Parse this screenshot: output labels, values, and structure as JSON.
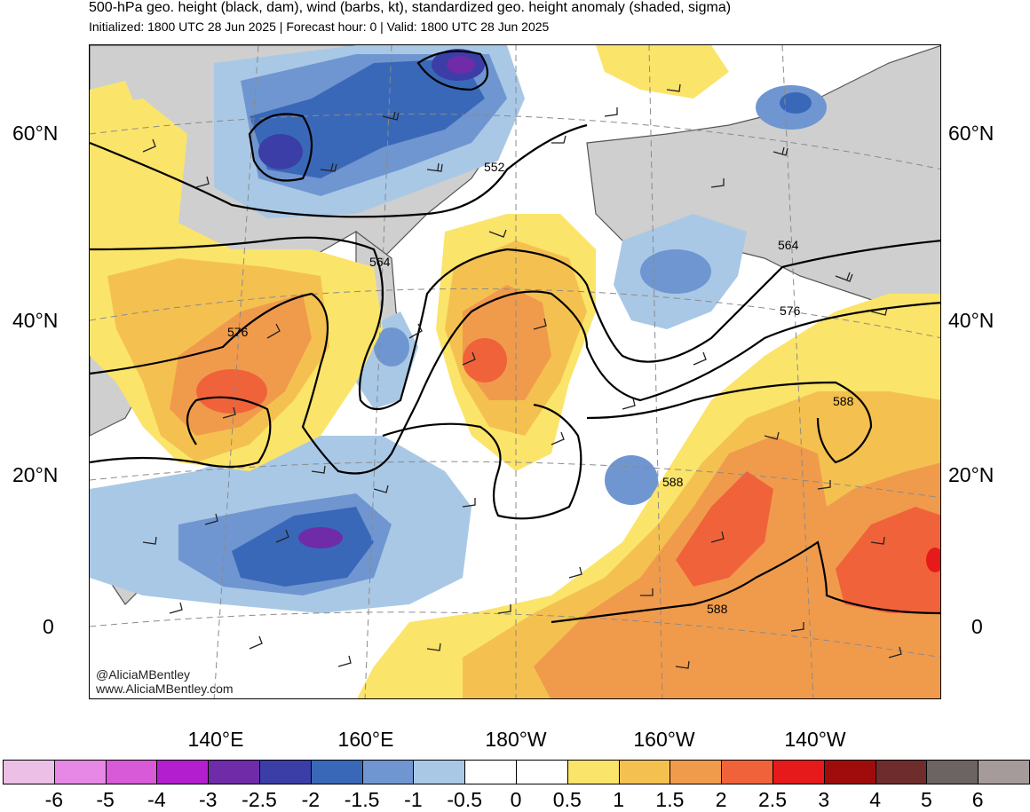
{
  "header": {
    "title": "500-hPa geo. height (black, dam), wind (barbs, kt), standardized geo. height anomaly (shaded, sigma)",
    "subtitle": "Initialized: 1800 UTC 28 Jun 2025 | Forecast hour: 0 | Valid: 1800 UTC 28 Jun 2025"
  },
  "map": {
    "lat_labels_left": [
      "60°N",
      "40°N",
      "20°N",
      "0"
    ],
    "lat_labels_right": [
      "60°N",
      "40°N",
      "20°N",
      "0"
    ],
    "lon_labels": [
      "140°E",
      "160°E",
      "180°W",
      "160°W",
      "140°W"
    ],
    "contour_labels": [
      "552",
      "564",
      "564",
      "576",
      "576",
      "588",
      "588",
      "588"
    ],
    "credit_handle": "@AliciaMBentley",
    "credit_site": "www.AliciaMBentley.com"
  },
  "colorbar": {
    "ticks": [
      "-6",
      "-5",
      "-4",
      "-3",
      "-2.5",
      "-2",
      "-1.5",
      "-1",
      "-0.5",
      "0",
      "0.5",
      "1",
      "1.5",
      "2",
      "2.5",
      "3",
      "4",
      "5",
      "6"
    ],
    "colors": [
      "#ecbfe6",
      "#e888e6",
      "#d85ad8",
      "#b31fcf",
      "#6f2ba8",
      "#3b3ea6",
      "#3a68b8",
      "#6f96d0",
      "#a9c8e6",
      "#ffffff",
      "#ffffff",
      "#fbe46a",
      "#f4c150",
      "#f09b4c",
      "#f0633a",
      "#e61a1a",
      "#a00b0b",
      "#6f2c2c",
      "#6c6463",
      "#a69b9b"
    ]
  }
}
